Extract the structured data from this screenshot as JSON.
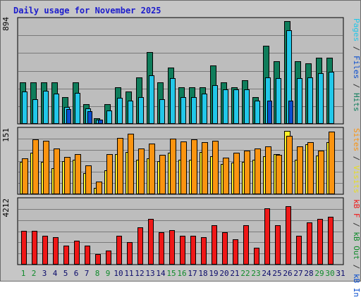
{
  "title": "Daily usage for November 2025",
  "colors": {
    "frame_bg": "#c6c6c6",
    "plot_bg": "#bdbdbd",
    "hits": "#0f7d5b",
    "files": "#22c7e9",
    "pages": "#0b4fcf",
    "visits": "#fff02a",
    "sites": "#fb9410",
    "kbytes": "#ef1818",
    "weekend_label": "#0f8a2a",
    "weekday_label": "#0a0a6a"
  },
  "right_labels": {
    "top": [
      {
        "text": "Pages",
        "color": "#22c7e9"
      },
      {
        "text": " / ",
        "color": "#333333"
      },
      {
        "text": "Files",
        "color": "#0b4fcf"
      },
      {
        "text": " / ",
        "color": "#333333"
      },
      {
        "text": "Hits",
        "color": "#0f7d5b"
      }
    ],
    "middle": [
      {
        "text": "Sites",
        "color": "#fb9410"
      },
      {
        "text": " / ",
        "color": "#333333"
      },
      {
        "text": "Visits",
        "color": "#e8dd22"
      }
    ],
    "bottom": [
      {
        "text": "kB F",
        "color": "#ef1818"
      },
      {
        "text": " / ",
        "color": "#333333"
      },
      {
        "text": "kB Out",
        "color": "#0f8a2a"
      },
      {
        "text": " / ",
        "color": "#333333"
      },
      {
        "text": "kB In",
        "color": "#0b4fcf"
      }
    ]
  },
  "chart_data": [
    {
      "type": "bar",
      "name": "Hits / Files / Pages",
      "ymax_label": "894",
      "ymax": 894,
      "categories": [
        "1",
        "2",
        "3",
        "4",
        "5",
        "6",
        "7",
        "8",
        "9",
        "10",
        "11",
        "12",
        "13",
        "14",
        "15",
        "16",
        "17",
        "18",
        "19",
        "20",
        "21",
        "22",
        "23",
        "24",
        "25",
        "26",
        "27",
        "28",
        "29",
        "30",
        "31"
      ],
      "weekend_days": [
        1,
        2,
        8,
        9,
        15,
        16,
        22,
        23,
        29,
        30
      ],
      "series": [
        {
          "name": "Hits",
          "color": "#0f7d5b",
          "values": [
            354,
            354,
            354,
            354,
            230,
            354,
            168,
            50,
            168,
            310,
            274,
            398,
            611,
            354,
            478,
            310,
            310,
            310,
            496,
            354,
            310,
            372,
            230,
            664,
            531,
            876,
            531,
            514,
            566,
            566,
            0
          ]
        },
        {
          "name": "Files",
          "color": "#22c7e9",
          "values": [
            274,
            212,
            283,
            257,
            142,
            266,
            133,
            35,
            115,
            221,
            195,
            230,
            416,
            212,
            390,
            230,
            230,
            257,
            328,
            292,
            292,
            292,
            195,
            398,
            390,
            797,
            390,
            398,
            434,
            443,
            0
          ]
        },
        {
          "name": "Pages",
          "color": "#0b4fcf",
          "values": [
            0,
            0,
            0,
            0,
            124,
            0,
            106,
            35,
            0,
            0,
            0,
            0,
            0,
            0,
            0,
            0,
            0,
            0,
            0,
            0,
            0,
            0,
            0,
            195,
            0,
            195,
            0,
            0,
            0,
            0,
            0
          ]
        }
      ]
    },
    {
      "type": "bar",
      "name": "Visits / Sites",
      "ymax_label": "151",
      "ymax": 151,
      "categories": [
        "1",
        "2",
        "3",
        "4",
        "5",
        "6",
        "7",
        "8",
        "9",
        "10",
        "11",
        "12",
        "13",
        "14",
        "15",
        "16",
        "17",
        "18",
        "19",
        "20",
        "21",
        "22",
        "23",
        "24",
        "25",
        "26",
        "27",
        "28",
        "29",
        "30",
        "31"
      ],
      "series": [
        {
          "name": "Visits",
          "color": "#fff02a",
          "values": [
            74,
            95,
            74,
            60,
            77,
            79,
            49,
            15,
            56,
            93,
            98,
            80,
            82,
            77,
            95,
            80,
            80,
            97,
            88,
            70,
            73,
            75,
            80,
            88,
            93,
            146,
            80,
            116,
            89,
            120,
            0
          ]
        },
        {
          "name": "Sites",
          "color": "#fb9410",
          "values": [
            82,
            127,
            123,
            105,
            86,
            92,
            66,
            30,
            93,
            130,
            139,
            106,
            117,
            91,
            128,
            122,
            127,
            120,
            123,
            84,
            95,
            100,
            105,
            111,
            91,
            134,
            111,
            120,
            101,
            145,
            0
          ]
        }
      ]
    },
    {
      "type": "bar",
      "name": "kB F / kB Out / kB In",
      "ymax_label": "4212",
      "ymax": 4212,
      "categories": [
        "1",
        "2",
        "3",
        "4",
        "5",
        "6",
        "7",
        "8",
        "9",
        "10",
        "11",
        "12",
        "13",
        "14",
        "15",
        "16",
        "17",
        "18",
        "19",
        "20",
        "21",
        "22",
        "23",
        "24",
        "25",
        "26",
        "27",
        "28",
        "29",
        "30",
        "31"
      ],
      "series": [
        {
          "name": "kB F",
          "color": "#ef1818",
          "values": [
            2155,
            2155,
            1846,
            1769,
            1231,
            1538,
            1231,
            692,
            923,
            1846,
            1462,
            2385,
            2923,
            2077,
            2231,
            1846,
            1846,
            1769,
            2539,
            2077,
            1615,
            2539,
            1077,
            3616,
            2539,
            3770,
            1846,
            2700,
            2955,
            3090,
            0
          ]
        }
      ]
    }
  ]
}
